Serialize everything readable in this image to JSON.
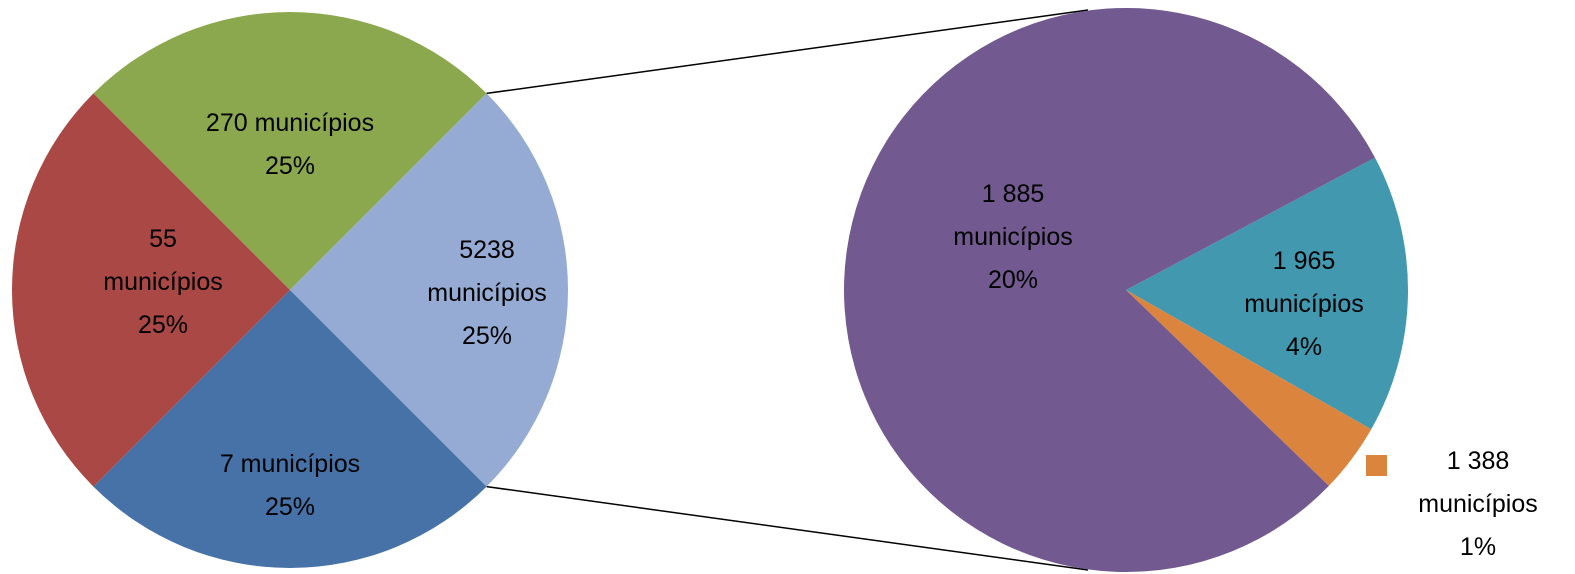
{
  "chart_data": {
    "type": "pie",
    "subtype": "pie-of-pie",
    "primary_pie": {
      "slices": [
        {
          "lines": [
            "270 municípios",
            "25%"
          ],
          "value": 25,
          "color": "#8BA84E"
        },
        {
          "lines": [
            "5238",
            "municípios",
            "25%"
          ],
          "value": 25,
          "color": "#95ABD4"
        },
        {
          "lines": [
            "7 municípios",
            "25%"
          ],
          "value": 25,
          "color": "#4672A8"
        },
        {
          "lines": [
            "55",
            "municípios",
            "25%"
          ],
          "value": 25,
          "color": "#AA4845"
        }
      ]
    },
    "secondary_pie": {
      "slices": [
        {
          "lines": [
            "1 965",
            "municípios",
            "4%"
          ],
          "value": 4,
          "color": "#4298AF"
        },
        {
          "lines": [
            "1 388",
            "municípios",
            "1%"
          ],
          "value": 1,
          "color": "#DB843D"
        },
        {
          "lines": [
            "1 885",
            "municípios",
            "20%"
          ],
          "value": 20,
          "color": "#725990"
        }
      ]
    },
    "connector_color": "#000000"
  }
}
